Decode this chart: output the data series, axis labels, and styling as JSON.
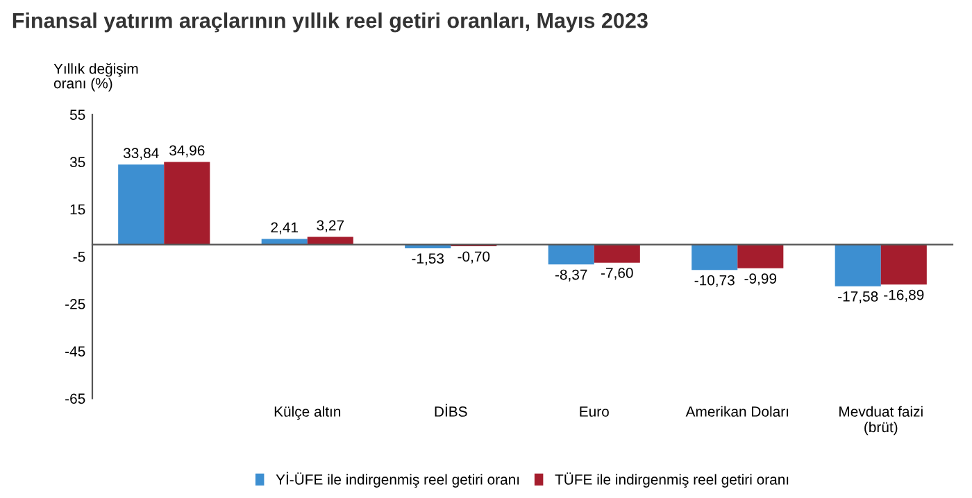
{
  "chart_data": {
    "type": "bar",
    "title": "Finansal yatırım araçlarının yıllık reel getiri oranları, Mayıs 2023",
    "ylabel": "Yıllık değişim\noranı (%)",
    "categories": [
      null,
      "Külçe altın",
      "DİBS",
      "Euro",
      "Amerikan Doları",
      "Mevduat faizi\n(brüt)"
    ],
    "series": [
      {
        "name": "Yİ-ÜFE ile indirgenmiş reel getiri oranı",
        "color": "#3d8fd1",
        "values": [
          33.84,
          2.41,
          -1.53,
          -8.37,
          -10.73,
          -17.58
        ],
        "value_labels": [
          "33,84",
          "2,41",
          "-1,53",
          "-8,37",
          "-10,73",
          "-17,58"
        ]
      },
      {
        "name": "TÜFE ile indirgenmiş reel getiri oranı",
        "color": "#a51d2d",
        "values": [
          34.96,
          3.27,
          -0.7,
          -7.6,
          -9.99,
          -16.89
        ],
        "value_labels": [
          "34,96",
          "3,27",
          "-0,70",
          "-7,60",
          "-9,99",
          "-16,89"
        ]
      }
    ],
    "ylim": [
      -65,
      55
    ],
    "yticks": [
      55,
      35,
      15,
      -5,
      -25,
      -45,
      -65
    ],
    "grid": false,
    "legend": "bottom"
  }
}
